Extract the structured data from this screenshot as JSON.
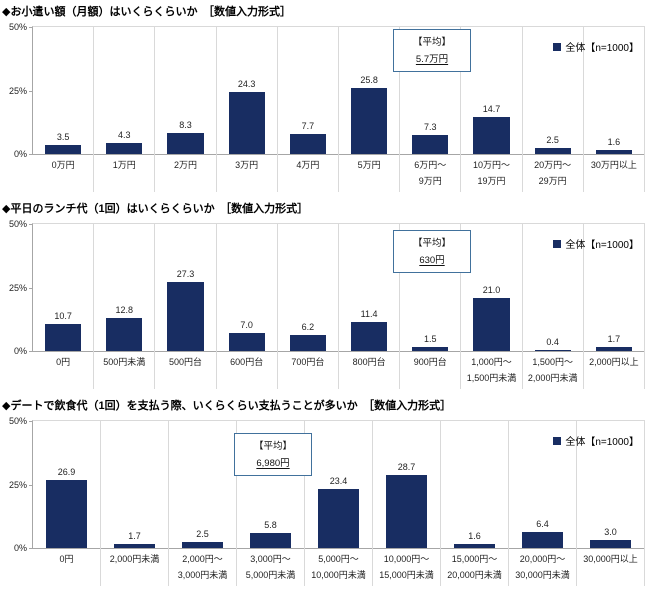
{
  "colors": {
    "bar": "#182d62",
    "grid": "#d9d9d9",
    "axis": "#a6a6a6",
    "average_box_border": "#41719c"
  },
  "y_axis": {
    "ticks": [
      "50%",
      "25%",
      "0%"
    ],
    "max": 50
  },
  "chart_data": [
    {
      "type": "bar",
      "title": "◆お小遣い額（月額）はいくらくらいか　［数値入力形式］",
      "categories": [
        "0万円",
        "1万円",
        "2万円",
        "3万円",
        "4万円",
        "5万円",
        "6万円～\n9万円",
        "10万円～\n19万円",
        "20万円～\n29万円",
        "30万円以上"
      ],
      "values": [
        3.5,
        4.3,
        8.3,
        24.3,
        7.7,
        25.8,
        7.3,
        14.7,
        2.5,
        1.6
      ],
      "ylim": [
        0,
        50
      ],
      "grid": "vertical-category-separators",
      "legend": "全体【n=1000】",
      "average": {
        "label": "【平均】",
        "value": "5.7万円"
      },
      "layout": {
        "avg_box_x": 360,
        "avg_box_y": 2,
        "avg_box_w": 78,
        "legend_position": "top-right"
      }
    },
    {
      "type": "bar",
      "title": "◆平日のランチ代（1回）はいくらくらいか　［数値入力形式］",
      "categories": [
        "0円",
        "500円未満",
        "500円台",
        "600円台",
        "700円台",
        "800円台",
        "900円台",
        "1,000円～\n1,500円未満",
        "1,500円～\n2,000円未満",
        "2,000円以上"
      ],
      "values": [
        10.7,
        12.8,
        27.3,
        7.0,
        6.2,
        11.4,
        1.5,
        21.0,
        0.4,
        1.7
      ],
      "ylim": [
        0,
        50
      ],
      "grid": "vertical-category-separators",
      "legend": "全体【n=1000】",
      "average": {
        "label": "【平均】",
        "value": "630円"
      },
      "layout": {
        "avg_box_x": 360,
        "avg_box_y": 6,
        "avg_box_w": 78,
        "legend_position": "top-right"
      }
    },
    {
      "type": "bar",
      "title": "◆デートで飲食代（1回）を支払う際、いくらくらい支払うことが多いか　［数値入力形式］",
      "categories": [
        "0円",
        "2,000円未満",
        "2,000円～\n3,000円未満",
        "3,000円～\n5,000円未満",
        "5,000円～\n10,000円未満",
        "10,000円～\n15,000円未満",
        "15,000円～\n20,000円未満",
        "20,000円～\n30,000円未満",
        "30,000円以上"
      ],
      "values": [
        26.9,
        1.7,
        2.5,
        5.8,
        23.4,
        28.7,
        1.6,
        6.4,
        3.0
      ],
      "ylim": [
        0,
        50
      ],
      "grid": "vertical-category-separators",
      "legend": "全体【n=1000】",
      "average": {
        "label": "【平均】",
        "value": "6,980円"
      },
      "layout": {
        "avg_box_x": 201,
        "avg_box_y": 12,
        "avg_box_w": 78,
        "legend_position": "top-right"
      }
    }
  ]
}
